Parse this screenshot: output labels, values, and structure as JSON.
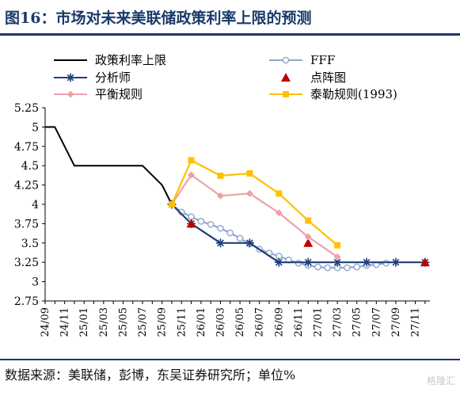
{
  "title": "图16：市场对未来美联储政策利率上限的预测",
  "source": "数据来源：美联储，彭博，东吴证券研究所；单位%",
  "watermark": "格隆汇",
  "chart_data": {
    "type": "line",
    "title": "",
    "xlabel": "",
    "ylabel": "",
    "ylim": [
      2.75,
      5.25
    ],
    "yticks": [
      "5.25",
      "5",
      "4.75",
      "4.5",
      "4.25",
      "4",
      "3.75",
      "3.5",
      "3.25",
      "3",
      "2.75"
    ],
    "xticks": [
      "24/09",
      "24/11",
      "25/01",
      "25/03",
      "25/05",
      "25/07",
      "25/09",
      "25/11",
      "26/01",
      "26/03",
      "26/05",
      "26/07",
      "26/09",
      "26/11",
      "27/01",
      "27/03",
      "27/05",
      "27/07",
      "27/09",
      "27/11"
    ],
    "legend": [
      "政策利率上限",
      "FFF",
      "分析师",
      "点阵图",
      "平衡规则",
      "泰勒规则(1993)"
    ],
    "series": [
      {
        "name": "政策利率上限",
        "color": "#000000",
        "marker": "none",
        "points": [
          [
            "24/09",
            5.0
          ],
          [
            "24/10",
            5.0
          ],
          [
            "24/11",
            4.75
          ],
          [
            "24/12",
            4.5
          ],
          [
            "25/01",
            4.5
          ],
          [
            "25/03",
            4.5
          ],
          [
            "25/05",
            4.5
          ],
          [
            "25/07",
            4.5
          ],
          [
            "25/09",
            4.25
          ],
          [
            "25/10",
            4.0
          ]
        ]
      },
      {
        "name": "FFF",
        "color": "#8fa8cc",
        "marker": "open-circle",
        "points": [
          [
            "25/10",
            4.0
          ],
          [
            "25/11",
            3.9
          ],
          [
            "25/12",
            3.84
          ],
          [
            "26/01",
            3.78
          ],
          [
            "26/02",
            3.74
          ],
          [
            "26/03",
            3.69
          ],
          [
            "26/04",
            3.63
          ],
          [
            "26/05",
            3.56
          ],
          [
            "26/06",
            3.49
          ],
          [
            "26/07",
            3.42
          ],
          [
            "26/08",
            3.37
          ],
          [
            "26/09",
            3.33
          ],
          [
            "26/10",
            3.28
          ],
          [
            "26/11",
            3.24
          ],
          [
            "26/12",
            3.21
          ],
          [
            "27/01",
            3.19
          ],
          [
            "27/02",
            3.18
          ],
          [
            "27/03",
            3.18
          ],
          [
            "27/04",
            3.18
          ],
          [
            "27/05",
            3.19
          ],
          [
            "27/06",
            3.21
          ],
          [
            "27/07",
            3.22
          ],
          [
            "27/08",
            3.24
          ]
        ]
      },
      {
        "name": "分析师",
        "color": "#1f3f7a",
        "marker": "asterisk",
        "points": [
          [
            "25/10",
            4.0
          ],
          [
            "25/12",
            3.75
          ],
          [
            "26/03",
            3.5
          ],
          [
            "26/06",
            3.5
          ],
          [
            "26/09",
            3.25
          ],
          [
            "26/12",
            3.25
          ],
          [
            "27/03",
            3.25
          ],
          [
            "27/06",
            3.25
          ],
          [
            "27/09",
            3.25
          ],
          [
            "27/12",
            3.25
          ]
        ]
      },
      {
        "name": "点阵图",
        "color": "#c00000",
        "marker": "triangle",
        "points": [
          [
            "25/12",
            3.75
          ],
          [
            "26/12",
            3.5
          ],
          [
            "27/12",
            3.25
          ]
        ]
      },
      {
        "name": "平衡规则",
        "color": "#f0a0a8",
        "marker": "diamond",
        "points": [
          [
            "25/10",
            4.0
          ],
          [
            "25/12",
            4.38
          ],
          [
            "26/03",
            4.11
          ],
          [
            "26/06",
            4.14
          ],
          [
            "26/09",
            3.89
          ],
          [
            "26/12",
            3.58
          ],
          [
            "27/03",
            3.32
          ]
        ]
      },
      {
        "name": "泰勒规则(1993)",
        "color": "#ffc000",
        "marker": "square",
        "points": [
          [
            "25/10",
            4.0
          ],
          [
            "25/12",
            4.57
          ],
          [
            "26/03",
            4.37
          ],
          [
            "26/06",
            4.4
          ],
          [
            "26/09",
            4.14
          ],
          [
            "26/12",
            3.79
          ],
          [
            "27/03",
            3.47
          ]
        ]
      }
    ]
  }
}
